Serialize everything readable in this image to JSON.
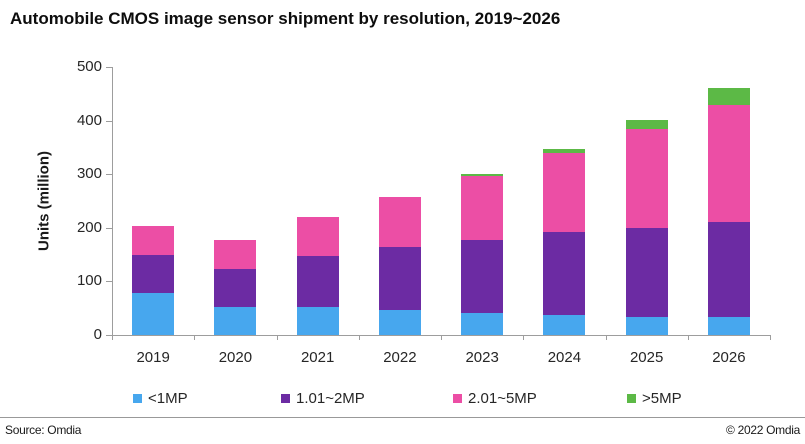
{
  "title": "Automobile CMOS image sensor shipment by resolution, 2019~2026",
  "chart_data": {
    "type": "bar",
    "stacked": true,
    "title": "Automobile CMOS image sensor shipment by resolution, 2019~2026",
    "categories": [
      "2019",
      "2020",
      "2021",
      "2022",
      "2023",
      "2024",
      "2025",
      "2026"
    ],
    "series": [
      {
        "name": "<1MP",
        "color": "#47A7EE",
        "values": [
          78,
          53,
          52,
          47,
          41,
          37,
          34,
          34
        ]
      },
      {
        "name": "1.01~2MP",
        "color": "#6C2BA3",
        "values": [
          72,
          70,
          95,
          118,
          137,
          155,
          165,
          177
        ]
      },
      {
        "name": "2.01~5MP",
        "color": "#EC4EA5",
        "values": [
          53,
          55,
          73,
          93,
          118,
          147,
          186,
          218
        ]
      },
      {
        "name": ">5MP",
        "color": "#5CB946",
        "values": [
          0,
          0,
          0,
          0,
          4,
          8,
          17,
          31
        ]
      }
    ],
    "xlabel": "",
    "ylabel": "Units (million)",
    "ylim": [
      0,
      500
    ],
    "yticks": [
      0,
      100,
      200,
      300,
      400,
      500
    ],
    "grid": false,
    "legend_position": "bottom"
  },
  "legend": {
    "items": [
      "<1MP",
      "1.01~2MP",
      "2.01~5MP",
      ">5MP"
    ]
  },
  "footer": {
    "source": "Source: Omdia",
    "copyright": "© 2022 Omdia"
  }
}
